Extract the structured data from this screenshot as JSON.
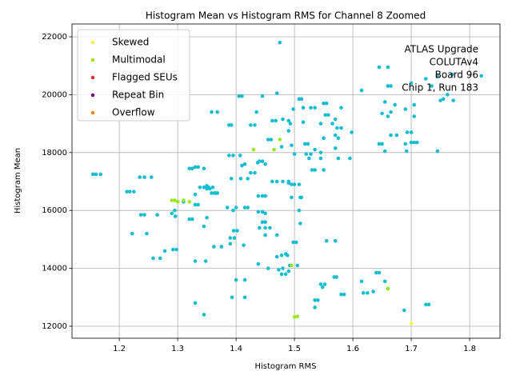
{
  "chart_data": {
    "type": "scatter",
    "title": "Histogram Mean vs Histogram RMS for Channel 8 Zoomed",
    "xlabel": "Histogram RMS",
    "ylabel": "Histogram Mean",
    "annotation": [
      "ATLAS Upgrade",
      "COLUTAv4",
      "Board 96",
      "Chip 1, Run 183"
    ],
    "xlim": [
      1.119,
      1.852
    ],
    "ylim": [
      11586,
      22442
    ],
    "xticks": [
      1.2,
      1.3,
      1.4,
      1.5,
      1.6,
      1.7,
      1.8
    ],
    "yticks": [
      12000,
      14000,
      16000,
      18000,
      20000,
      22000
    ],
    "grid": true,
    "legend": "upper-left",
    "series": [
      {
        "color": "#17becf",
        "x": [
          1.155,
          1.16,
          1.168,
          1.213,
          1.218,
          1.225,
          1.235,
          1.243,
          1.255,
          1.237,
          1.243,
          1.222,
          1.247,
          1.265,
          1.258,
          1.27,
          1.278,
          1.292,
          1.298,
          1.29,
          1.296,
          1.295,
          1.31,
          1.32,
          1.325,
          1.33,
          1.335,
          1.345,
          1.338,
          1.345,
          1.35,
          1.355,
          1.358,
          1.363,
          1.368,
          1.353,
          1.36,
          1.33,
          1.335,
          1.32,
          1.325,
          1.35,
          1.345,
          1.362,
          1.375,
          1.33,
          1.348,
          1.33,
          1.345,
          1.358,
          1.368,
          1.388,
          1.392,
          1.388,
          1.395,
          1.392,
          1.385,
          1.395,
          1.4,
          1.396,
          1.402,
          1.39,
          1.397,
          1.39,
          1.393,
          1.4,
          1.405,
          1.41,
          1.407,
          1.41,
          1.415,
          1.408,
          1.42,
          1.415,
          1.42,
          1.413,
          1.415,
          1.415,
          1.425,
          1.432,
          1.425,
          1.432,
          1.437,
          1.44,
          1.445,
          1.45,
          1.438,
          1.445,
          1.45,
          1.438,
          1.445,
          1.45,
          1.445,
          1.45,
          1.44,
          1.45,
          1.458,
          1.45,
          1.47,
          1.438,
          1.455,
          1.435,
          1.445,
          1.455,
          1.46,
          1.462,
          1.468,
          1.47,
          1.475,
          1.48,
          1.49,
          1.493,
          1.49,
          1.495,
          1.478,
          1.48,
          1.462,
          1.47,
          1.49,
          1.495,
          1.5,
          1.508,
          1.49,
          1.495,
          1.51,
          1.512,
          1.508,
          1.51,
          1.498,
          1.503,
          1.47,
          1.478,
          1.488,
          1.485,
          1.473,
          1.478,
          1.485,
          1.48,
          1.49,
          1.505,
          1.492,
          1.508,
          1.512,
          1.498,
          1.5,
          1.515,
          1.515,
          1.518,
          1.523,
          1.52,
          1.525,
          1.528,
          1.53,
          1.535,
          1.535,
          1.528,
          1.535,
          1.545,
          1.55,
          1.555,
          1.553,
          1.558,
          1.545,
          1.55,
          1.545,
          1.55,
          1.565,
          1.57,
          1.573,
          1.57,
          1.575,
          1.58,
          1.58,
          1.57,
          1.575,
          1.595,
          1.598,
          1.555,
          1.57,
          1.568,
          1.572,
          1.545,
          1.548,
          1.552,
          1.535,
          1.54,
          1.535,
          1.58,
          1.585,
          1.615,
          1.645,
          1.66,
          1.665,
          1.66,
          1.655,
          1.65,
          1.66,
          1.665,
          1.672,
          1.645,
          1.65,
          1.655,
          1.665,
          1.675,
          1.69,
          1.692,
          1.693,
          1.7,
          1.7,
          1.705,
          1.71,
          1.705,
          1.705,
          1.69,
          1.7,
          1.725,
          1.735,
          1.745,
          1.75,
          1.755,
          1.762,
          1.77,
          1.772,
          1.82,
          1.745,
          1.725,
          1.73,
          1.688,
          1.615,
          1.618,
          1.625,
          1.635,
          1.64,
          1.645,
          1.655,
          1.66,
          1.35,
          1.365,
          1.33
        ],
        "values": [
          17250,
          17250,
          17250,
          16650,
          16650,
          16650,
          17150,
          17150,
          17150,
          15850,
          15850,
          15200,
          15200,
          15850,
          14350,
          14350,
          14600,
          14650,
          14650,
          15900,
          15800,
          16000,
          16300,
          17450,
          17450,
          17500,
          17500,
          17450,
          16800,
          16800,
          16750,
          16750,
          16600,
          16600,
          16600,
          16800,
          16800,
          16200,
          16200,
          15700,
          15700,
          15750,
          15450,
          14750,
          14750,
          14250,
          14250,
          12800,
          12400,
          19400,
          19400,
          18950,
          18950,
          17900,
          17900,
          17100,
          16100,
          16000,
          16100,
          15300,
          15300,
          15050,
          15050,
          14850,
          13000,
          13600,
          19950,
          19950,
          17900,
          17550,
          17600,
          17100,
          17100,
          16100,
          16100,
          14800,
          13600,
          13000,
          18950,
          18950,
          17300,
          17300,
          17650,
          17700,
          17700,
          17600,
          16500,
          16500,
          16500,
          15950,
          15950,
          15900,
          15600,
          15600,
          15400,
          15400,
          15400,
          15150,
          15150,
          14150,
          14000,
          19400,
          19950,
          18450,
          18450,
          19100,
          19100,
          20050,
          21800,
          19150,
          19100,
          19000,
          18750,
          18250,
          18200,
          17000,
          17000,
          17000,
          16950,
          16900,
          16900,
          16900,
          17000,
          16450,
          16450,
          16450,
          16000,
          15550,
          14900,
          14900,
          14400,
          14450,
          14450,
          14500,
          13950,
          13800,
          13800,
          14000,
          13900,
          14100,
          14100,
          19850,
          19850,
          19500,
          17950,
          19550,
          19050,
          18300,
          18300,
          17950,
          17800,
          17950,
          17400,
          17400,
          18100,
          19550,
          19550,
          19000,
          19700,
          19700,
          19300,
          19300,
          17800,
          17400,
          18000,
          18500,
          19000,
          19150,
          18850,
          18600,
          18500,
          18850,
          19550,
          18150,
          17800,
          17800,
          18700,
          14950,
          14950,
          13700,
          13700,
          13450,
          13350,
          13450,
          12900,
          12900,
          12650,
          13100,
          13100,
          20150,
          20950,
          20950,
          20300,
          20300,
          19750,
          19350,
          19250,
          19400,
          19650,
          18300,
          18300,
          18050,
          18600,
          18600,
          18300,
          18050,
          18700,
          18700,
          18350,
          18350,
          18350,
          19650,
          19250,
          19500,
          20400,
          20550,
          20300,
          20650,
          19800,
          19850,
          20000,
          20700,
          19800,
          20650,
          18050,
          12750,
          12750,
          12550,
          13550,
          13150,
          13150,
          13200,
          13850,
          13850,
          13550,
          13300,
          16850,
          16600,
          16550
        ]
      },
      {
        "name": "Skewed",
        "color": "#f2f24a",
        "x": [
          1.7
        ],
        "values": [
          12100
        ]
      },
      {
        "name": "Multimodal",
        "color": "#9be81e",
        "x": [
          1.29,
          1.295,
          1.3,
          1.31,
          1.32,
          1.43,
          1.465,
          1.475,
          1.495,
          1.5,
          1.505,
          1.66
        ],
        "values": [
          16350,
          16350,
          16300,
          16350,
          16300,
          18100,
          18100,
          18450,
          14100,
          12320,
          12340,
          13300
        ]
      },
      {
        "name": "Flagged SEUs",
        "color": "#e0303c",
        "x": [],
        "values": []
      },
      {
        "name": "Repeat Bin",
        "color": "#7a0a7a",
        "x": [],
        "values": []
      },
      {
        "name": "Overflow",
        "color": "#ff8c1a",
        "x": [],
        "values": []
      }
    ]
  }
}
